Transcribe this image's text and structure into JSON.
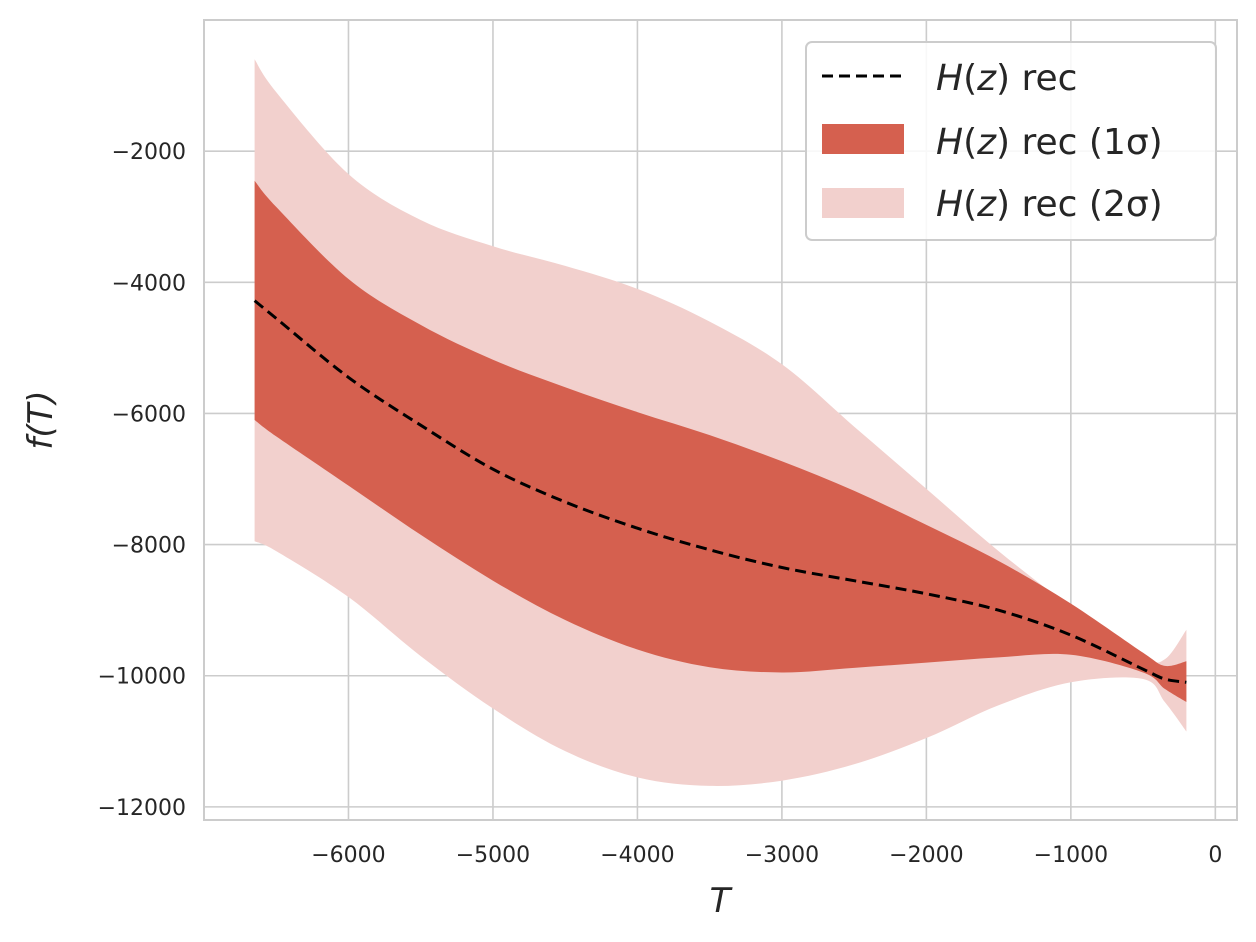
{
  "chart_data": {
    "type": "line",
    "xlabel": "T",
    "ylabel": "f(T)",
    "xlim": [
      -7000,
      150
    ],
    "ylim": [
      -12200,
      0
    ],
    "x_ticks": [
      -6000,
      -5000,
      -4000,
      -3000,
      -2000,
      -1000,
      0
    ],
    "x_tick_labels": [
      "−6000",
      "−5000",
      "−4000",
      "−3000",
      "−2000",
      "−1000",
      "0"
    ],
    "y_ticks": [
      -2000,
      -4000,
      -6000,
      -8000,
      -10000,
      -12000
    ],
    "y_tick_labels": [
      "−2000",
      "−4000",
      "−6000",
      "−8000",
      "−10000",
      "−12000"
    ],
    "grid": true,
    "legend_position": "top-right",
    "legend": [
      {
        "label": "H(z) rec",
        "italic": "H",
        "arg": "z",
        "rest": " rec",
        "style": "dashed"
      },
      {
        "label": "H(z) rec (1σ)",
        "italic": "H",
        "arg": "z",
        "rest": " rec (1σ)",
        "style": "band-1sigma"
      },
      {
        "label": "H(z) rec (2σ)",
        "italic": "H",
        "arg": "z",
        "rest": " rec (2σ)",
        "style": "band-2sigma"
      }
    ],
    "colors": {
      "line": "#000000",
      "band_1sigma": "#d5604f",
      "band_2sigma": "#f2d0cd"
    },
    "x": [
      -6650,
      -6500,
      -6000,
      -5500,
      -5000,
      -4500,
      -4000,
      -3500,
      -3000,
      -2500,
      -2000,
      -1500,
      -1000,
      -500,
      -350,
      -200
    ],
    "series": [
      {
        "name": "H(z) rec",
        "values": [
          -4280,
          -4550,
          -5450,
          -6180,
          -6850,
          -7350,
          -7750,
          -8080,
          -8350,
          -8550,
          -8750,
          -9000,
          -9380,
          -9900,
          -10050,
          -10100
        ]
      },
      {
        "name": "1σ upper",
        "values": [
          -2450,
          -2850,
          -3950,
          -4650,
          -5180,
          -5600,
          -5980,
          -6330,
          -6730,
          -7180,
          -7700,
          -8250,
          -8900,
          -9650,
          -9850,
          -9780
        ]
      },
      {
        "name": "1σ lower",
        "values": [
          -6100,
          -6350,
          -7100,
          -7850,
          -8550,
          -9150,
          -9600,
          -9870,
          -9950,
          -9880,
          -9800,
          -9720,
          -9680,
          -9950,
          -10200,
          -10400
        ]
      },
      {
        "name": "2σ upper",
        "values": [
          -600,
          -1100,
          -2350,
          -3050,
          -3450,
          -3750,
          -4100,
          -4600,
          -5250,
          -6200,
          -7150,
          -8100,
          -8950,
          -9700,
          -9750,
          -9300
        ]
      },
      {
        "name": "2σ lower",
        "values": [
          -7950,
          -8100,
          -8800,
          -9700,
          -10500,
          -11150,
          -11550,
          -11680,
          -11600,
          -11350,
          -10950,
          -10450,
          -10100,
          -10050,
          -10400,
          -10850
        ]
      }
    ]
  }
}
